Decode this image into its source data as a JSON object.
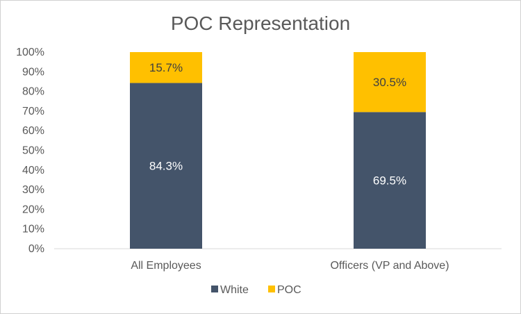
{
  "chart_data": {
    "type": "bar",
    "stacked": true,
    "title": "POC Representation",
    "categories": [
      "All Employees",
      "Officers (VP and Above)"
    ],
    "series": [
      {
        "name": "White",
        "values": [
          84.3,
          69.5
        ],
        "labels": [
          "84.3%",
          "69.5%"
        ],
        "color": "#44546a",
        "label_color": "#ffffff"
      },
      {
        "name": "POC",
        "values": [
          15.7,
          30.5
        ],
        "labels": [
          "15.7%",
          "30.5%"
        ],
        "color": "#ffc000",
        "label_color": "#404040"
      }
    ],
    "ylim": [
      0,
      100
    ],
    "yticks": [
      "0%",
      "10%",
      "20%",
      "30%",
      "40%",
      "50%",
      "60%",
      "70%",
      "80%",
      "90%",
      "100%"
    ],
    "grid": false,
    "legend_position": "bottom"
  }
}
